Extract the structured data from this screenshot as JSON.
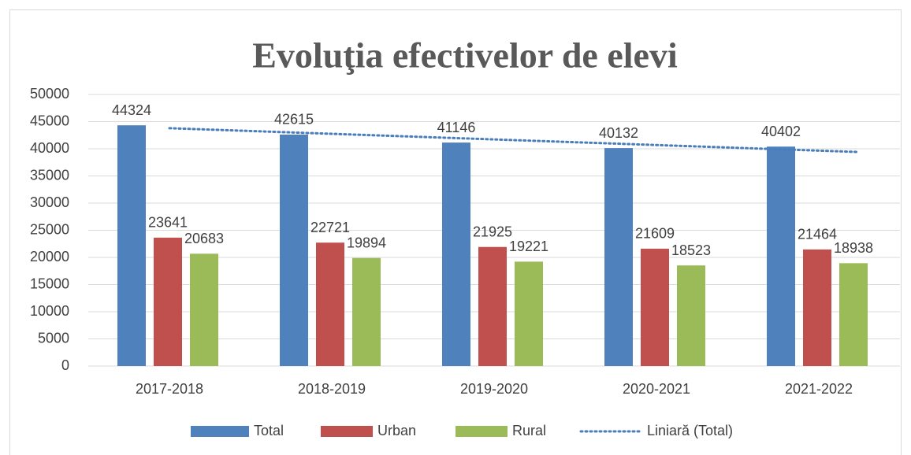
{
  "chart_data": {
    "type": "bar",
    "title": "Evoluţia efectivelor de elevi",
    "categories": [
      "2017-2018",
      "2018-2019",
      "2019-2020",
      "2020-2021",
      "2021-2022"
    ],
    "series": [
      {
        "name": "Total",
        "color": "#4f81bd",
        "values": [
          44324,
          42615,
          41146,
          40132,
          40402
        ]
      },
      {
        "name": "Urban",
        "color": "#c0504d",
        "values": [
          23641,
          22721,
          21925,
          21609,
          21464
        ]
      },
      {
        "name": "Rural",
        "color": "#9bbb59",
        "values": [
          20683,
          19894,
          19221,
          18523,
          18938
        ]
      }
    ],
    "trendline": {
      "name": "Liniară (Total)",
      "series": 0,
      "color": "#4a7ebb"
    },
    "ylim": [
      0,
      50000
    ],
    "yticks": [
      0,
      5000,
      10000,
      15000,
      20000,
      25000,
      30000,
      35000,
      40000,
      45000,
      50000
    ],
    "grid": true,
    "data_labels": true,
    "legend": "bottom"
  }
}
